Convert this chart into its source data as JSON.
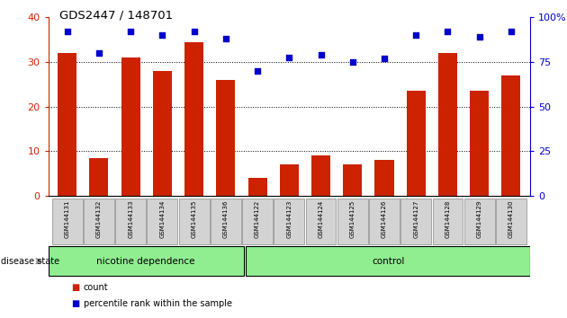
{
  "title": "GDS2447 / 148701",
  "samples": [
    "GSM144131",
    "GSM144132",
    "GSM144133",
    "GSM144134",
    "GSM144135",
    "GSM144136",
    "GSM144122",
    "GSM144123",
    "GSM144124",
    "GSM144125",
    "GSM144126",
    "GSM144127",
    "GSM144128",
    "GSM144129",
    "GSM144130"
  ],
  "counts": [
    32,
    8.5,
    31,
    28,
    34.5,
    26,
    4,
    7,
    9,
    7,
    8,
    23.5,
    32,
    23.5,
    27
  ],
  "percentile_ranks": [
    92,
    80,
    92,
    90,
    92,
    88,
    70,
    77.5,
    79,
    75,
    77,
    90,
    92,
    89,
    92
  ],
  "group1_label": "nicotine dependence",
  "group2_label": "control",
  "group1_count": 6,
  "group2_count": 9,
  "bar_color": "#cc2200",
  "dot_color": "#0000cc",
  "ylim_left": [
    0,
    40
  ],
  "yticks_left": [
    0,
    10,
    20,
    30,
    40
  ],
  "yticks_right_labels": [
    "0",
    "25",
    "50",
    "75",
    "100%"
  ],
  "grid_lines": [
    10,
    20,
    30
  ],
  "group_color": "#90ee90",
  "tick_bg": "#d3d3d3",
  "disease_state_label": "disease state",
  "legend_count_label": "count",
  "legend_pct_label": "percentile rank within the sample"
}
